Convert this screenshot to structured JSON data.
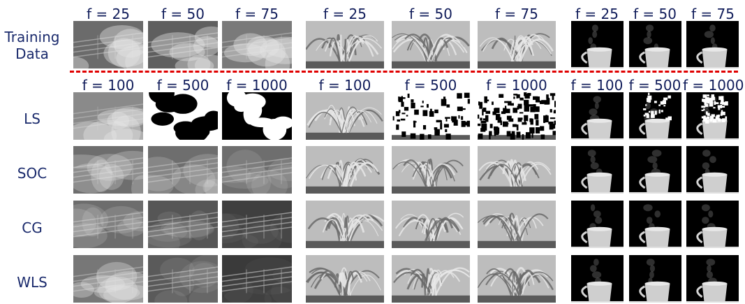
{
  "row_labels": {
    "training": [
      "Training",
      "Data"
    ],
    "ls": "LS",
    "soc": "SOC",
    "cg": "CG",
    "wls": "WLS"
  },
  "training_headers": {
    "smoke": [
      "f = 25",
      "f = 50",
      "f = 75"
    ],
    "fountain": [
      "f = 25",
      "f = 50",
      "f = 75"
    ],
    "steam": [
      "f = 25",
      "f = 50",
      "f = 75"
    ]
  },
  "prediction_headers": {
    "smoke": [
      "f = 100",
      "f = 500",
      "f = 1000"
    ],
    "fountain": [
      "f = 100",
      "f = 500",
      "f = 1000"
    ],
    "steam": [
      "f = 100",
      "f = 500",
      "f = 1000"
    ]
  },
  "colors": {
    "divider": "#e00000",
    "label": "#1a2a6c"
  }
}
